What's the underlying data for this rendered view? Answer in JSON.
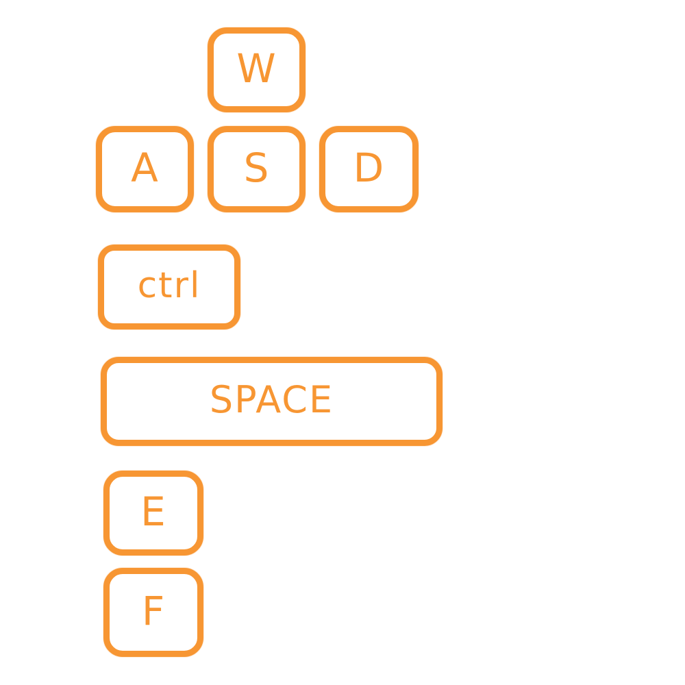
{
  "accent_color": "#F79633",
  "keys": {
    "w": {
      "label": "W",
      "icon": "keycap-w"
    },
    "a": {
      "label": "A",
      "icon": "keycap-a"
    },
    "s": {
      "label": "S",
      "icon": "keycap-s"
    },
    "d": {
      "label": "D",
      "icon": "keycap-d"
    },
    "ctrl": {
      "label": "ctrl",
      "icon": "keycap-ctrl"
    },
    "space": {
      "label": "SPACE",
      "icon": "keycap-space"
    },
    "e": {
      "label": "E",
      "icon": "keycap-e"
    },
    "f": {
      "label": "F",
      "icon": "keycap-f"
    }
  }
}
